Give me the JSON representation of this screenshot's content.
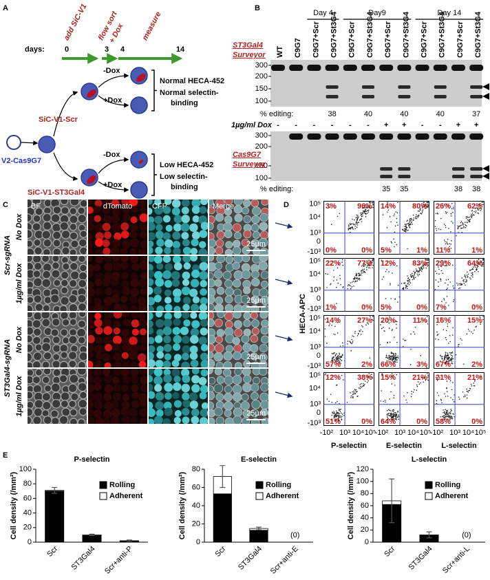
{
  "panel_labels": [
    "A",
    "B",
    "C",
    "D",
    "E"
  ],
  "panel_a": {
    "timeline_steps": [
      "add SiC-V1",
      "flow sort",
      "+ Dox",
      "measure"
    ],
    "days_label": "days:",
    "days": [
      0,
      3,
      4,
      14
    ],
    "parent_cell": "V2-Cas9G7",
    "scr_vector": "SiC-V1-Scr",
    "st3_vector": "SiC-V1-ST3Gal4",
    "dox_minus": "-Dox",
    "dox_plus": "+Dox",
    "scr_outcome": [
      "Normal HECA-452",
      "Normal selectin-",
      "binding"
    ],
    "st3_outcome": [
      "Low HECA-452",
      "Low selectin-",
      "binding"
    ]
  },
  "panel_b": {
    "gel1_title": [
      "ST3Gal4",
      "Surveyor"
    ],
    "gel2_title": [
      "Cas9G7",
      "Surveyor"
    ],
    "days": [
      "Day 4",
      "Day9",
      "Day 14"
    ],
    "lanes": [
      "WT",
      "C9G7",
      "C9G7+Scr",
      "C9G7+St3G4",
      "C9G7+Scr",
      "C9G7+St3G4",
      "C9G7+Scr",
      "C9G7+St3G4",
      "C9G7+Scr",
      "C9G7+St3G4",
      "C9G7+Scr",
      "C9G7+St3G4"
    ],
    "ladder": [
      300,
      200,
      150,
      100
    ],
    "editing_label": "% editing:",
    "gel1_editing": [
      null,
      null,
      null,
      38,
      null,
      40,
      null,
      40,
      null,
      40,
      null,
      37
    ],
    "dox_label": "1µg/ml Dox",
    "dox": [
      "-",
      "-",
      "-",
      "-",
      "-",
      "-",
      "+",
      "+",
      "-",
      "-",
      "+",
      "+"
    ],
    "gel2_editing": [
      null,
      null,
      null,
      null,
      null,
      null,
      35,
      35,
      null,
      null,
      38,
      38
    ]
  },
  "panel_c": {
    "channels": [
      "BF",
      "dTomato",
      "CFP",
      "Merge"
    ],
    "groups": [
      "Scr-sgRNA",
      "ST3Gal4-sgRNA"
    ],
    "conditions": [
      "No Dox",
      "1µg/ml Dox",
      "No Dox",
      "1µg/ml Dox"
    ],
    "scale_bar": "25µm"
  },
  "panel_d": {
    "y_label": "HECA-APC",
    "yticks": [
      "10⁵",
      "10⁴",
      "10³",
      "0",
      "-10³"
    ],
    "xticks": [
      "-10²",
      "10³",
      "10⁴",
      "10⁵"
    ],
    "columns": [
      "P-selectin",
      "E-selectin",
      "L-selectin"
    ],
    "rows": [
      [
        [
          "3%",
          "96%",
          "0%",
          "0%"
        ],
        [
          "14%",
          "80%",
          "5%",
          "1%"
        ],
        [
          "26%",
          "62%",
          "11%",
          "1%"
        ]
      ],
      [
        [
          "22%",
          "77%",
          "1%",
          "0%"
        ],
        [
          "12%",
          "83%",
          "5%",
          "0%"
        ],
        [
          "29%",
          "64%",
          "7%",
          "0%"
        ]
      ],
      [
        [
          "14%",
          "27%",
          "57%",
          "2%"
        ],
        [
          "20%",
          "11%",
          "66%",
          "3%"
        ],
        [
          "16%",
          "15%",
          "67%",
          "2%"
        ]
      ],
      [
        [
          "12%",
          "38%",
          "51%",
          "0%"
        ],
        [
          "15%",
          "21%",
          "64%",
          "0%"
        ],
        [
          "21%",
          "21%",
          "58%",
          "0%"
        ]
      ]
    ]
  },
  "chart_data": [
    {
      "type": "bar",
      "stacked": true,
      "title": "P-selectin",
      "y_label": "Cell density (/mm²)",
      "categories": [
        "Scr",
        "ST3Gal4",
        "Scr+anti-P"
      ],
      "series": [
        {
          "name": "Rolling",
          "color": "#000000",
          "values": [
            70,
            9,
            1.5
          ]
        },
        {
          "name": "Adherent",
          "color": "#ffffff",
          "values": [
            1,
            1,
            0.5
          ],
          "errors": [
            4,
            1,
            1
          ]
        }
      ],
      "ylim": [
        0,
        100
      ],
      "yticks": [
        0,
        20,
        40,
        60,
        80,
        100
      ]
    },
    {
      "type": "bar",
      "stacked": true,
      "title": "E-selectin",
      "y_label": "Cell density (/mm²)",
      "categories": [
        "Scr",
        "ST3Gal4",
        "Scr+anti-E"
      ],
      "series": [
        {
          "name": "Rolling",
          "color": "#000000",
          "values": [
            53,
            13,
            0
          ],
          "value_labels": [
            null,
            null,
            "(0)"
          ]
        },
        {
          "name": "Adherent",
          "color": "#ffffff",
          "values": [
            19,
            2,
            0
          ],
          "errors": [
            12,
            1.5,
            null
          ]
        }
      ],
      "ylim": [
        0,
        80
      ],
      "yticks": [
        0,
        20,
        40,
        60,
        80
      ]
    },
    {
      "type": "bar",
      "stacked": true,
      "title": "L-selectin",
      "y_label": "Cell density (/mm²)",
      "categories": [
        "Scr",
        "ST3Gal4",
        "Scr+anti-L"
      ],
      "series": [
        {
          "name": "Rolling",
          "color": "#000000",
          "values": [
            62,
            11,
            0
          ],
          "value_labels": [
            null,
            null,
            "(0)"
          ]
        },
        {
          "name": "Adherent",
          "color": "#ffffff",
          "values": [
            6,
            1,
            0
          ],
          "errors": [
            36,
            5,
            null
          ]
        }
      ],
      "ylim": [
        0,
        120
      ],
      "yticks": [
        0,
        20,
        40,
        60,
        80,
        100,
        120
      ]
    }
  ]
}
